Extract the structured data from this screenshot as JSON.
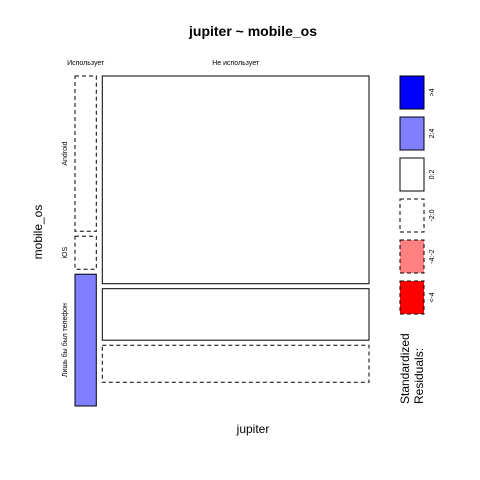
{
  "chart_data": {
    "type": "mosaic",
    "title": "jupiter ~ mobile_os",
    "xlabel": "jupiter",
    "ylabel": "mobile_os",
    "x_categories": [
      "Использует",
      "Не использует"
    ],
    "y_categories": [
      "Android",
      "iOS",
      "Лишь бы был телефон"
    ],
    "column_share": [
      0.074,
      0.926
    ],
    "cells": [
      {
        "x": "Использует",
        "y": "Android",
        "share": 0.485,
        "residual_band": "-2:0"
      },
      {
        "x": "Использует",
        "y": "iOS",
        "share": 0.103,
        "residual_band": "-2:0"
      },
      {
        "x": "Использует",
        "y": "Лишь бы был телефон",
        "share": 0.412,
        "residual_band": "2:4"
      },
      {
        "x": "Не использует",
        "y": "Android",
        "share": 0.649,
        "residual_band": "0:2"
      },
      {
        "x": "Не использует",
        "y": "iOS",
        "share": 0.161,
        "residual_band": "0:2"
      },
      {
        "x": "Не использует",
        "y": "Лишь бы был телефон",
        "share": 0.116,
        "residual_band": "-2:0"
      }
    ],
    "legend": {
      "title_line1": "Standardized",
      "title_line2": "Residuals:",
      "placement": "right",
      "items": [
        {
          "label": ">4",
          "fill": "#0000FF",
          "dashed": false
        },
        {
          "label": "2:4",
          "fill": "#8080FF",
          "dashed": false
        },
        {
          "label": "0:2",
          "fill": "#FFFFFF",
          "dashed": false
        },
        {
          "label": "-2:0",
          "fill": "#FFFFFF",
          "dashed": true
        },
        {
          "label": "-4:-2",
          "fill": "#FF8080",
          "dashed": true
        },
        {
          "label": "<-4",
          "fill": "#FF0000",
          "dashed": true
        }
      ]
    }
  }
}
